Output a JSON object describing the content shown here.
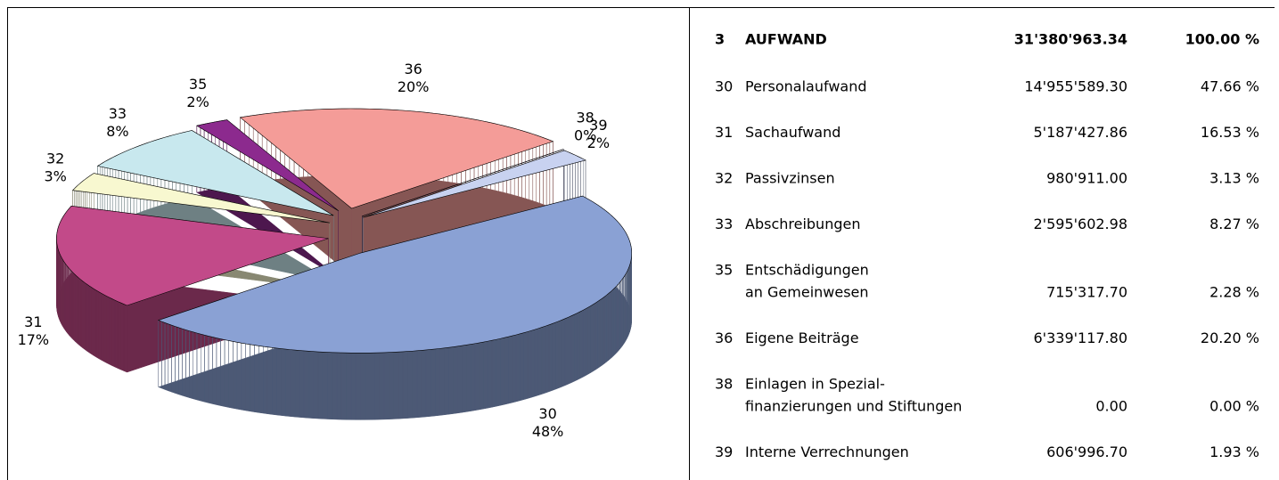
{
  "chart_data": {
    "type": "pie",
    "categories": [
      "30",
      "31",
      "32",
      "33",
      "35",
      "36",
      "38",
      "39"
    ],
    "values": [
      48,
      17,
      3,
      8,
      2,
      20,
      0,
      2
    ],
    "value_labels": [
      "48%",
      "17%",
      "3%",
      "8%",
      "2%",
      "20%",
      "0%",
      "2%"
    ],
    "colors": [
      "#8aa1d4",
      "#c24a89",
      "#f8f8d0",
      "#c8e8ee",
      "#8c2a8e",
      "#f49c98",
      "#26285e",
      "#c8d2f0"
    ]
  },
  "table": {
    "header": [
      "3",
      "AUFWAND",
      "31'380'963.34",
      "100.00 %"
    ],
    "rows": [
      [
        "30",
        [
          "Personalaufwand"
        ],
        "14'955'589.30",
        "47.66 %"
      ],
      [
        "31",
        [
          "Sachaufwand"
        ],
        "5'187'427.86",
        "16.53 %"
      ],
      [
        "32",
        [
          "Passivzinsen"
        ],
        "980'911.00",
        "3.13 %"
      ],
      [
        "33",
        [
          "Abschreibungen"
        ],
        "2'595'602.98",
        "8.27 %"
      ],
      [
        "35",
        [
          "Entschädigungen",
          "an Gemeinwesen"
        ],
        "715'317.70",
        "2.28 %"
      ],
      [
        "36",
        [
          "Eigene Beiträge"
        ],
        "6'339'117.80",
        "20.20 %"
      ],
      [
        "38",
        [
          "Einlagen in Spezial-",
          "finanzierungen und Stiftungen"
        ],
        "0.00",
        "0.00 %"
      ],
      [
        "39",
        [
          "Interne Verrechnungen"
        ],
        "606'996.70",
        "1.93 %"
      ]
    ]
  }
}
